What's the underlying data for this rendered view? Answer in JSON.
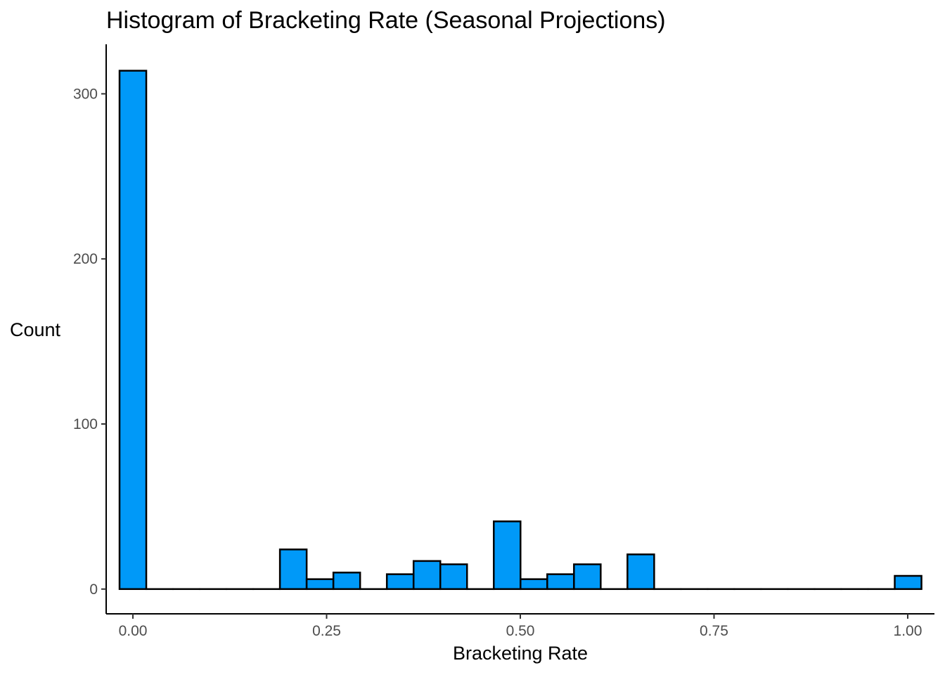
{
  "chart_data": {
    "type": "bar",
    "title": "Histogram of Bracketing Rate (Seasonal Projections)",
    "xlabel": "Bracketing Rate",
    "ylabel": "Count",
    "bin_width": 0.0345,
    "bin_start": -0.01725,
    "bins": 30,
    "x_tick_values": [
      0.0,
      0.25,
      0.5,
      0.75,
      1.0
    ],
    "x_tick_labels": [
      "0.00",
      "0.25",
      "0.50",
      "0.75",
      "1.00"
    ],
    "y_tick_values": [
      0,
      100,
      200,
      300
    ],
    "y_tick_labels": [
      "0",
      "100",
      "200",
      "300"
    ],
    "xlim": [
      -0.0345,
      1.0345
    ],
    "ylim": [
      -15,
      330
    ],
    "counts": [
      314,
      0,
      0,
      0,
      0,
      0,
      24,
      6,
      10,
      0,
      9,
      17,
      15,
      0,
      41,
      6,
      9,
      15,
      0,
      21,
      0,
      0,
      0,
      0,
      0,
      0,
      0,
      0,
      0,
      8
    ],
    "fill_color": "#0099f8",
    "outline_color": "#000000",
    "grid": false,
    "legend": "none"
  }
}
